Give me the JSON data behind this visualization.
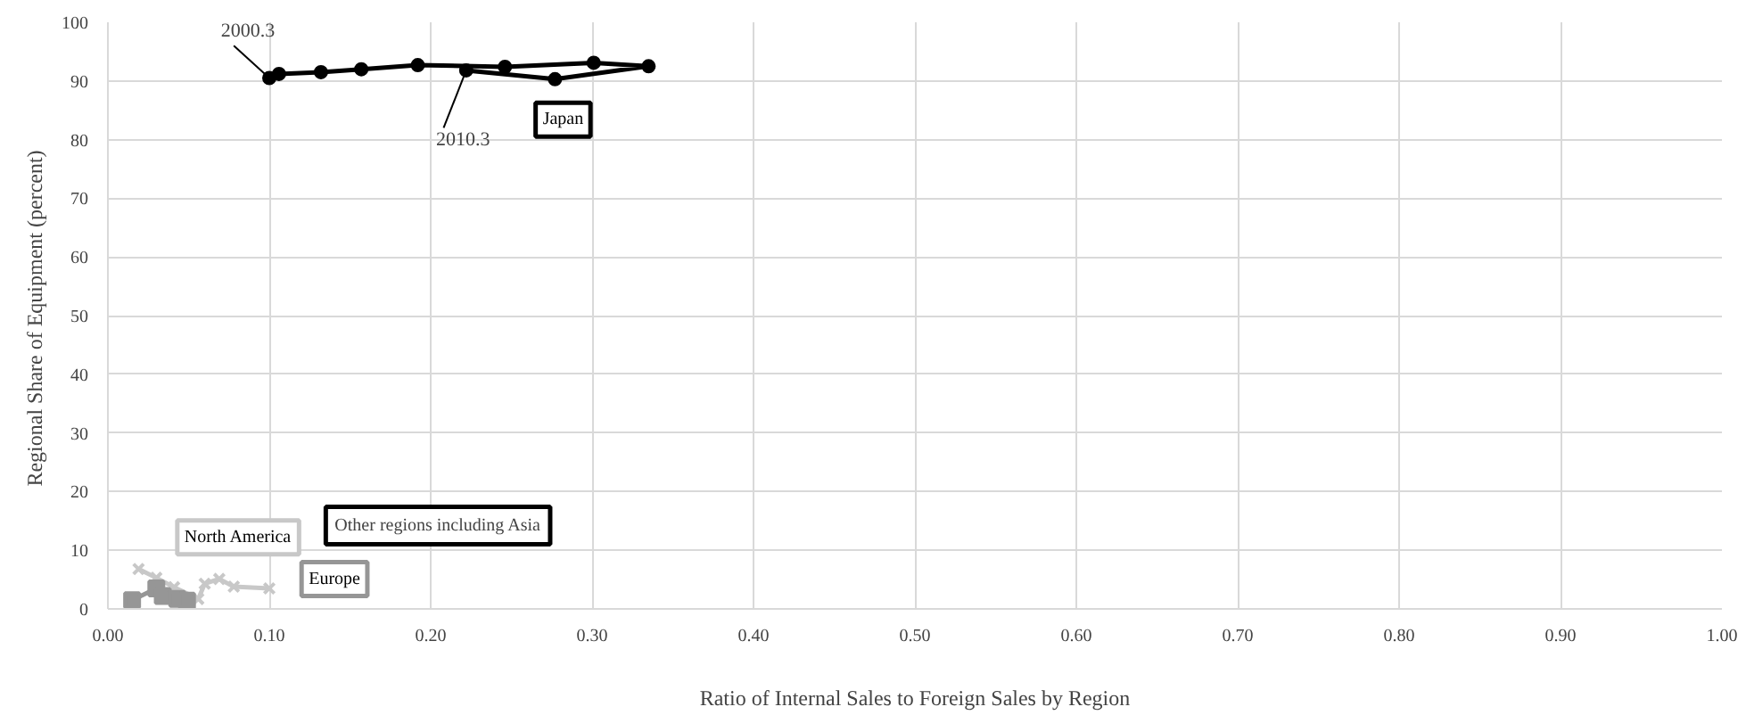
{
  "chart_data": {
    "type": "line",
    "xlabel": "Ratio of Internal Sales to Foreign Sales by Region",
    "ylabel": "Regional Share of  Equipment (percent)",
    "xlim": [
      0,
      1
    ],
    "ylim": [
      0,
      100
    ],
    "xticks": [
      {
        "value": 0,
        "label": "0.00"
      },
      {
        "value": 0.1,
        "label": "0.10"
      },
      {
        "value": 0.2,
        "label": "0.20"
      },
      {
        "value": 0.3,
        "label": "0.30"
      },
      {
        "value": 0.4,
        "label": "0.40"
      },
      {
        "value": 0.5,
        "label": "0.50"
      },
      {
        "value": 0.6,
        "label": "0.60"
      },
      {
        "value": 0.7,
        "label": "0.70"
      },
      {
        "value": 0.8,
        "label": "0.80"
      },
      {
        "value": 0.9,
        "label": "0.90"
      },
      {
        "value": 1,
        "label": "1.00"
      }
    ],
    "yticks": [
      0,
      10,
      20,
      30,
      40,
      50,
      60,
      70,
      80,
      90,
      100
    ],
    "grid": true,
    "series": [
      {
        "name": "Japan",
        "color": "#000000",
        "marker": "circle",
        "x": [
          0.1,
          0.106,
          0.132,
          0.157,
          0.192,
          0.246,
          0.301,
          0.335,
          0.277,
          0.222
        ],
        "values": [
          90.5,
          91.2,
          91.5,
          92.0,
          92.7,
          92.4,
          93.1,
          92.5,
          90.3,
          91.8
        ]
      },
      {
        "name": "North America",
        "color": "#c8c8c8",
        "marker": "cross",
        "x": [
          0.019,
          0.03,
          0.041,
          0.056,
          0.06,
          0.069,
          0.078,
          0.1
        ],
        "values": [
          6.8,
          5.3,
          3.7,
          1.7,
          4.3,
          5.1,
          3.8,
          3.5
        ]
      },
      {
        "name": "Europe",
        "color": "#969696",
        "marker": "square",
        "x": [
          0.015,
          0.03,
          0.034,
          0.043,
          0.049
        ],
        "values": [
          1.5,
          3.5,
          2.2,
          1.7,
          1.4
        ]
      }
    ],
    "annotations": [
      {
        "text": "2000.3",
        "x": 0.1,
        "y": 90.5
      },
      {
        "text": "2010.3",
        "x": 0.222,
        "y": 91.8
      },
      "Other regions including Asia"
    ]
  }
}
